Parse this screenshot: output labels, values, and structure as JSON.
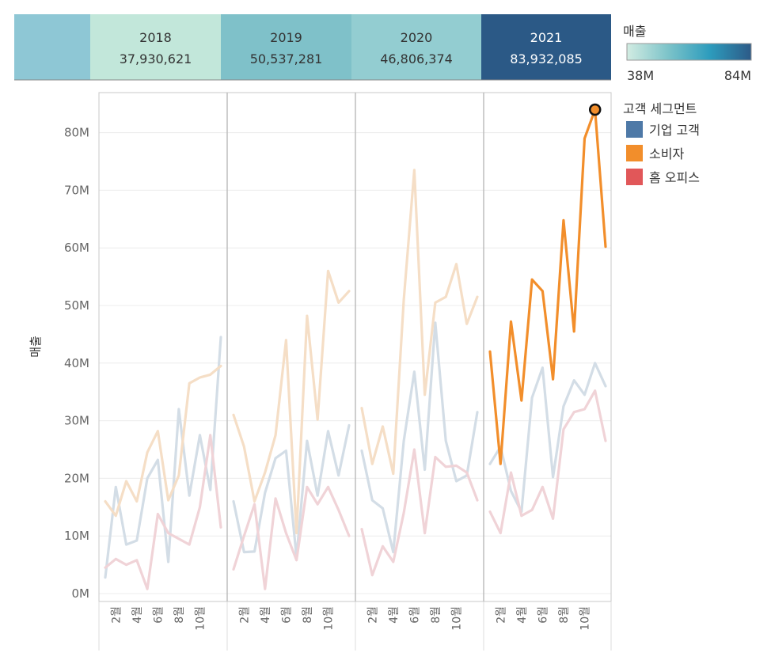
{
  "chart_data": {
    "type": "line",
    "ylabel": "매출",
    "ylim": [
      0,
      88000000
    ],
    "y_ticks": [
      {
        "value": 0,
        "label": "0M"
      },
      {
        "value": 10000000,
        "label": "10M"
      },
      {
        "value": 20000000,
        "label": "20M"
      },
      {
        "value": 30000000,
        "label": "30M"
      },
      {
        "value": 40000000,
        "label": "40M"
      },
      {
        "value": 50000000,
        "label": "50M"
      },
      {
        "value": 60000000,
        "label": "60M"
      },
      {
        "value": 70000000,
        "label": "70M"
      },
      {
        "value": 80000000,
        "label": "80M"
      }
    ],
    "month_ticks": [
      {
        "month": 2,
        "label": "2월"
      },
      {
        "month": 4,
        "label": "4월"
      },
      {
        "month": 6,
        "label": "6월"
      },
      {
        "month": 8,
        "label": "8월"
      },
      {
        "month": 10,
        "label": "10월"
      }
    ],
    "highlighted_year": "2021",
    "highlighted_segment": "소비자",
    "highlighted_point": {
      "year": "2021",
      "month": 11,
      "value": 84000000
    },
    "years": [
      {
        "year": "2018",
        "total": "37,930,621",
        "color": "#c2e7da"
      },
      {
        "year": "2019",
        "total": "50,537,281",
        "color": "#7fc1c9"
      },
      {
        "year": "2020",
        "total": "46,806,374",
        "color": "#93cdd1"
      },
      {
        "year": "2021",
        "total": "83,932,085",
        "color": "#2b5986"
      }
    ],
    "header_blank_color": "#8ec7d5",
    "color_legend": {
      "title": "매출",
      "min_label": "38M",
      "max_label": "84M",
      "gradient": [
        "#d2ece2",
        "#7cc3c9",
        "#2d9cbd",
        "#2d5a87"
      ]
    },
    "segment_legend": {
      "title": "고객 세그먼트"
    },
    "series": [
      {
        "name": "기업 고객",
        "color": "#4e79a7",
        "faded_color": "#d3dde6",
        "data": {
          "2018": [
            2.8,
            18.5,
            8.5,
            9.2,
            20,
            23.2,
            5.5,
            32,
            17,
            27.5,
            18,
            44.5
          ],
          "2019": [
            16,
            7.2,
            7.3,
            17.5,
            23.5,
            24.8,
            6.3,
            26.5,
            17,
            28.2,
            20.5,
            29.2
          ],
          "2020": [
            24.8,
            16.2,
            14.8,
            7.2,
            26.5,
            38.5,
            21.5,
            47,
            26.5,
            19.5,
            20.5,
            31.5
          ],
          "2021": [
            22.5,
            25.5,
            17.8,
            14.2,
            34,
            39.2,
            20.2,
            32.5,
            37,
            34.5,
            40,
            36
          ]
        }
      },
      {
        "name": "소비자",
        "color": "#f28e2b",
        "faded_color": "#f5dec6",
        "data": {
          "2018": [
            16,
            13.5,
            19.5,
            16,
            24.5,
            28.2,
            16.2,
            20.5,
            36.5,
            37.5,
            38,
            39.5
          ],
          "2019": [
            31,
            25.5,
            16,
            21,
            27.5,
            44,
            10.5,
            48.2,
            30.2,
            56,
            50.5,
            52.5
          ],
          "2020": [
            32.2,
            22.5,
            29,
            20.8,
            51,
            73.5,
            34.5,
            50.5,
            51.5,
            57.2,
            46.8,
            51.5
          ],
          "2021": [
            42,
            22.5,
            47.2,
            33.5,
            54.5,
            52.5,
            37.2,
            64.8,
            45.5,
            79,
            84,
            60.2
          ]
        }
      },
      {
        "name": "홈 오피스",
        "color": "#e15759",
        "faded_color": "#f0d3d7",
        "data": {
          "2018": [
            4.5,
            6,
            5,
            5.8,
            0.8,
            13.8,
            10.5,
            9.5,
            8.5,
            15,
            27.5,
            11.5
          ],
          "2019": [
            4.2,
            10,
            15.5,
            0.8,
            16.5,
            10.5,
            5.8,
            18.5,
            15.5,
            18.5,
            14.5,
            10
          ],
          "2020": [
            11.2,
            3.2,
            8.2,
            5.5,
            14,
            25,
            10.5,
            23.7,
            22,
            22.2,
            21,
            16.2
          ],
          "2021": [
            14.2,
            10.5,
            21,
            13.5,
            14.5,
            18.5,
            13,
            28.5,
            31.5,
            32,
            35.2,
            26.5
          ]
        }
      }
    ]
  }
}
